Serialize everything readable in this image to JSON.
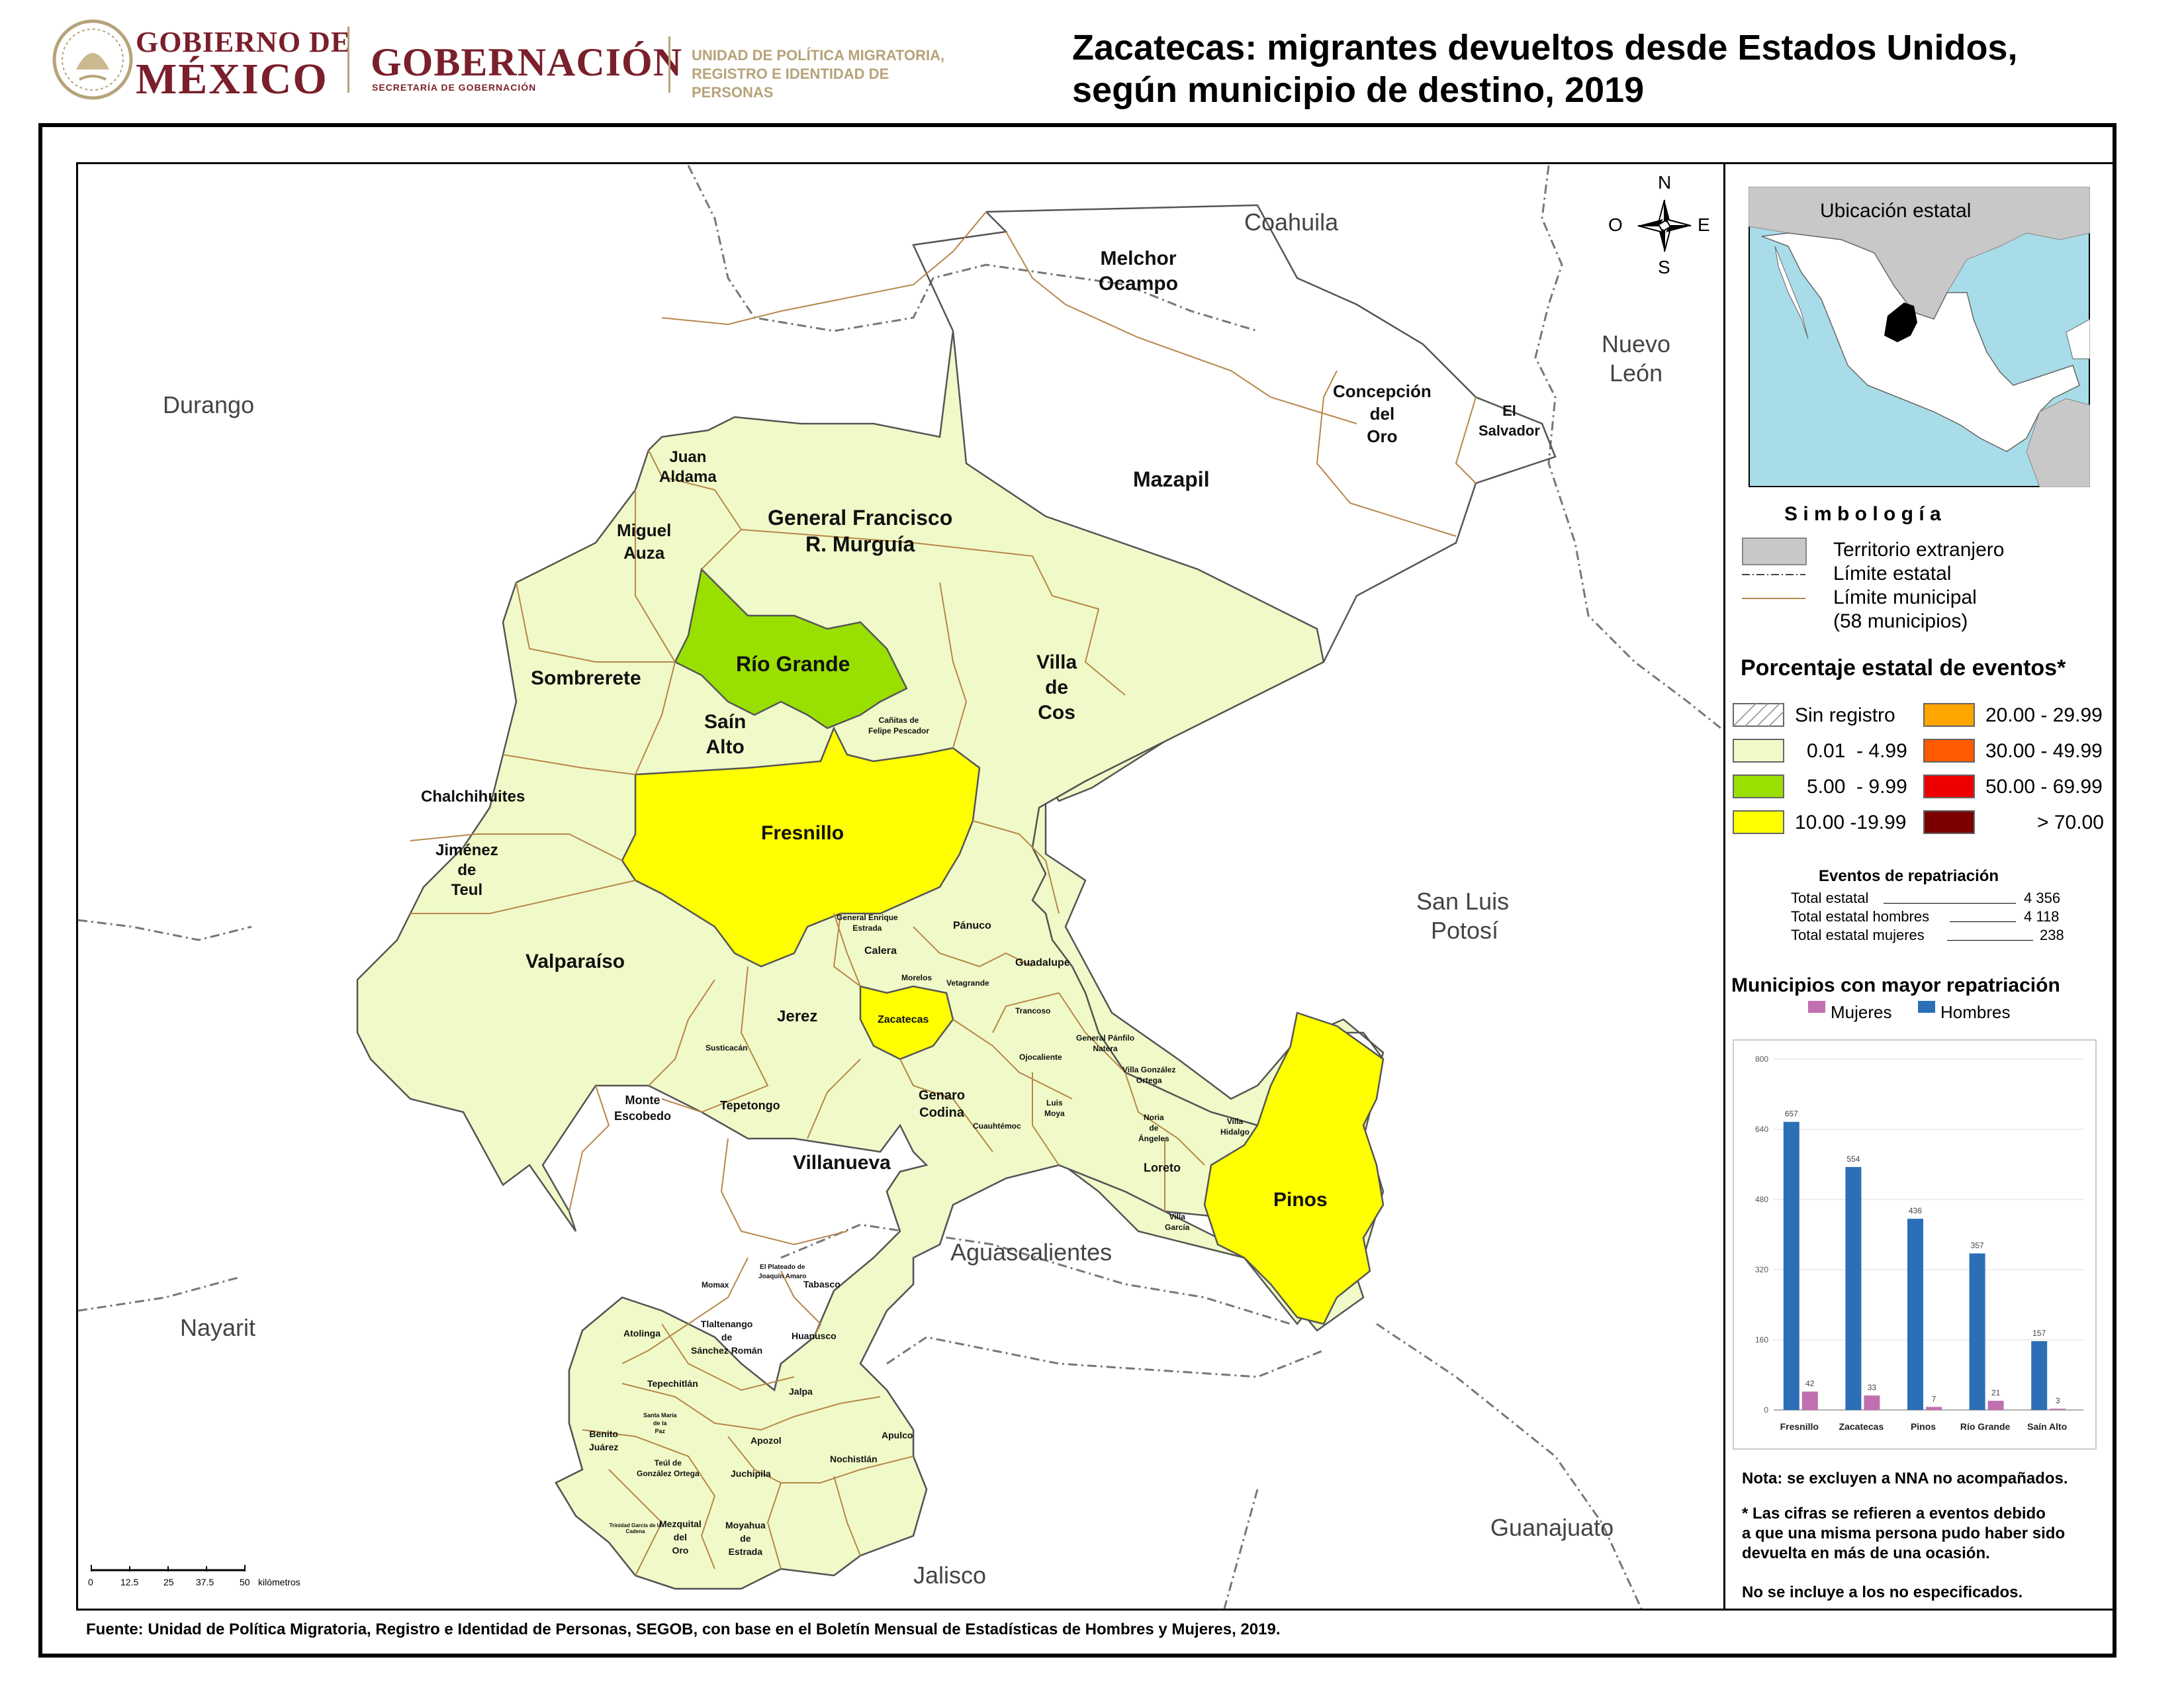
{
  "header": {
    "gob_line1": "GOBIERNO DE",
    "gob_line2": "MÉXICO",
    "gobernacion": "GOBERNACIÓN",
    "secretaria": "SECRETARÍA DE GOBERNACIÓN",
    "unidad_line1": "UNIDAD DE POLÍTICA MIGRATORIA,",
    "unidad_line2": "REGISTRO E IDENTIDAD DE PERSONAS",
    "title_line1": "Zacatecas: migrantes devueltos desde Estados Unidos,",
    "title_line2": "según municipio de destino, 2019"
  },
  "colors": {
    "class_0": "#f0fac8",
    "class_1": "#99e000",
    "class_2": "#ffff00",
    "class_3": "#ffa500",
    "class_4": "#ff5a00",
    "class_5": "#ee0000",
    "class_6": "#7a0000",
    "foreign": "#c8c8c8",
    "municipal_line": "#b8864a",
    "mujeres": "#c070b0",
    "hombres": "#2c6fb6",
    "accent": "#7a1f2b"
  },
  "compass": {
    "n": "N",
    "s": "S",
    "e": "E",
    "w": "O"
  },
  "neighbors": {
    "coahuila": "Coahuila",
    "nuevo_leon_1": "Nuevo",
    "nuevo_leon_2": "León",
    "durango": "Durango",
    "slp_1": "San Luis",
    "slp_2": "Potosí",
    "nayarit": "Nayarit",
    "aguascalientes": "Aguascalientes",
    "guanajuato": "Guanajuato",
    "jalisco": "Jalisco"
  },
  "municipalities": {
    "melchor_1": "Melchor",
    "melchor_2": "Ocampo",
    "concepcion_1": "Concepción",
    "concepcion_2": "del",
    "concepcion_3": "Oro",
    "el_salvador_1": "El",
    "el_salvador_2": "Salvador",
    "mazapil": "Mazapil",
    "juan_aldama_1": "Juan",
    "juan_aldama_2": "Aldama",
    "miguel_auza_1": "Miguel",
    "miguel_auza_2": "Auza",
    "gfrm_1": "General Francisco",
    "gfrm_2": "R. Murguía",
    "rio_grande": "Río Grande",
    "villa_de_cos_1": "Villa",
    "villa_de_cos_2": "de",
    "villa_de_cos_3": "Cos",
    "sombrerete": "Sombrerete",
    "sain_alto_1": "Saín",
    "sain_alto_2": "Alto",
    "canitas_1": "Cañitas de",
    "canitas_2": "Felipe Pescador",
    "chalchihuites": "Chalchihuites",
    "fresnillo": "Fresnillo",
    "jimenez_1": "Jiménez",
    "jimenez_2": "de",
    "jimenez_3": "Teul",
    "gee_1": "General Enrique",
    "gee_2": "Estrada",
    "panuco": "Pánuco",
    "calera": "Calera",
    "valparaiso": "Valparaíso",
    "guadalupe": "Guadalupe",
    "morelos": "Morelos",
    "vetagrande": "Vetagrande",
    "jerez": "Jerez",
    "zacatecas": "Zacatecas",
    "trancoso": "Trancoso",
    "gpn_1": "General Pánfilo",
    "gpn_2": "Natera",
    "susticacan": "Susticacán",
    "ojocaliente": "Ojocaliente",
    "vgo_1": "Villa González",
    "vgo_2": "Ortega",
    "monte_1": "Monte",
    "monte_2": "Escobedo",
    "tepetongo": "Tepetongo",
    "genaro_1": "Genaro",
    "genaro_2": "Codina",
    "luis_moya_1": "Luis",
    "luis_moya_2": "Moya",
    "noria_1": "Noria",
    "noria_2": "de",
    "noria_3": "Ángeles",
    "villa_hidalgo_1": "Villa",
    "villa_hidalgo_2": "Hidalgo",
    "cuauhtemoc": "Cuauhtémoc",
    "villanueva": "Villanueva",
    "loreto": "Loreto",
    "pinos": "Pinos",
    "villa_garcia_1": "Villa",
    "villa_garcia_2": "García",
    "plateado_1": "El Plateado de",
    "plateado_2": "Joaquín Amaro",
    "momax": "Momax",
    "tabasco": "Tabasco",
    "atolinga": "Atolinga",
    "tlalt_1": "Tlaltenango",
    "tlalt_2": "de",
    "tlalt_3": "Sánchez Román",
    "huanusco": "Huanusco",
    "tepechitlan": "Tepechitlán",
    "jalpa": "Jalpa",
    "santa_maria_1": "Santa María",
    "santa_maria_2": "de la",
    "santa_maria_3": "Paz",
    "benito_1": "Benito",
    "benito_2": "Juárez",
    "apozol": "Apozol",
    "apulco": "Apulco",
    "teul_1": "Teúl de",
    "teul_2": "González Ortega",
    "nochistlan": "Nochistlán",
    "juchipila": "Juchipila",
    "trinidad": "Trinidad García de la Cadena",
    "mezquital_1": "Mezquital",
    "mezquital_2": "del",
    "mezquital_3": "Oro",
    "moyahua_1": "Moyahua",
    "moyahua_2": "de",
    "moyahua_3": "Estrada"
  },
  "scale": {
    "ticks": [
      "0",
      "12.5",
      "25",
      "37.5",
      "50"
    ],
    "unit": "kilómetros"
  },
  "inset": {
    "title": "Ubicación estatal"
  },
  "legend": {
    "simbologia": "S i m b o l o g í a",
    "territorio": "Territorio extranjero",
    "limite_estatal": "Límite estatal",
    "limite_municipal": "Límite municipal",
    "municipios_count": "(58 municipios)",
    "porcentaje_title": "Porcentaje estatal de eventos*",
    "classes": [
      "Sin registro",
      "0.01  - 4.99",
      "5.00  - 9.99",
      "10.00 -19.99",
      "20.00 - 29.99",
      "30.00 - 49.99",
      "50.00 - 69.99",
      "> 70.00"
    ]
  },
  "eventos": {
    "title": "Eventos de repatriación",
    "total_label": "Total estatal",
    "total_value": "4 356",
    "hombres_label": "Total estatal hombres",
    "hombres_value": "4 118",
    "mujeres_label": "Total estatal mujeres",
    "mujeres_value": "238"
  },
  "chart_data": {
    "type": "bar",
    "title": "Municipios con mayor repatriación",
    "categories": [
      "Fresnillo",
      "Zacatecas",
      "Pinos",
      "Río Grande",
      "Saín Alto"
    ],
    "series": [
      {
        "name": "Mujeres",
        "values": [
          42,
          33,
          7,
          21,
          3
        ]
      },
      {
        "name": "Hombres",
        "values": [
          657,
          554,
          436,
          357,
          157
        ]
      }
    ],
    "y_ticks": [
      0,
      160,
      320,
      480,
      640,
      800
    ],
    "ylim": [
      0,
      800
    ],
    "grid": true,
    "legend": "top"
  },
  "notes": {
    "nota": "Nota: se excluyen a NNA no acompañados.",
    "cifras_1": "* Las cifras se refieren a eventos debido",
    "cifras_2": "a que una misma persona pudo haber sido",
    "cifras_3": "devuelta en más de una ocasión.",
    "no_especificados": "No se incluye a los no especificados."
  },
  "source": "Fuente: Unidad de Política Migratoria, Registro e Identidad de Personas, SEGOB, con base en el Boletín Mensual de Estadísticas de Hombres y Mujeres, 2019."
}
